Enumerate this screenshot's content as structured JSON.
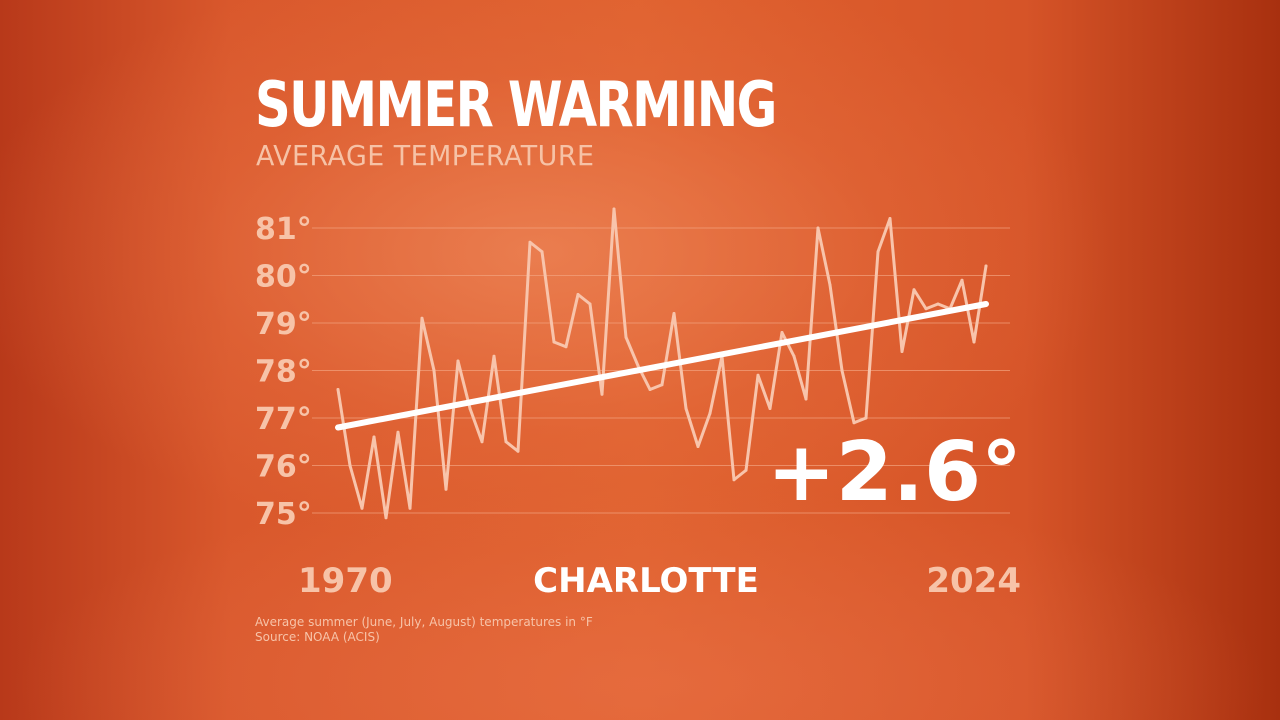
{
  "title": "SUMMER WARMING",
  "subtitle": "AVERAGE TEMPERATURE",
  "location": "CHARLOTTE",
  "change_label": "+2.6°",
  "footnote": {
    "line1": "Average summer (June, July, August) temperatures in °F",
    "line2": "Source: NOAA (ACIS)"
  },
  "colors": {
    "series_line": "#f8c4ab",
    "trend_line": "#ffffff",
    "grid": "#f2a37f",
    "tick_text": "#f7c3a8"
  },
  "chart_data": {
    "type": "line",
    "title": "SUMMER WARMING",
    "subtitle": "AVERAGE TEMPERATURE",
    "xlabel": "",
    "ylabel": "",
    "x_tick_labels": [
      "1970",
      "2024"
    ],
    "y_tick_labels": [
      "75°",
      "76°",
      "77°",
      "78°",
      "79°",
      "80°",
      "81°"
    ],
    "ylim": [
      75,
      81
    ],
    "xlim": [
      1970,
      2024
    ],
    "grid": true,
    "x": [
      1970,
      1971,
      1972,
      1973,
      1974,
      1975,
      1976,
      1977,
      1978,
      1979,
      1980,
      1981,
      1982,
      1983,
      1984,
      1985,
      1986,
      1987,
      1988,
      1989,
      1990,
      1991,
      1992,
      1993,
      1994,
      1995,
      1996,
      1997,
      1998,
      1999,
      2000,
      2001,
      2002,
      2003,
      2004,
      2005,
      2006,
      2007,
      2008,
      2009,
      2010,
      2011,
      2012,
      2013,
      2014,
      2015,
      2016,
      2017,
      2018,
      2019,
      2020,
      2021,
      2022,
      2023,
      2024
    ],
    "series": [
      {
        "values": [
          77.6,
          76.0,
          75.1,
          76.6,
          74.9,
          76.7,
          75.1,
          79.1,
          78.0,
          75.5,
          78.2,
          77.2,
          76.5,
          78.3,
          76.5,
          76.3,
          80.7,
          80.5,
          78.6,
          78.5,
          79.6,
          79.4,
          77.5,
          81.4,
          78.7,
          78.1,
          77.6,
          77.7,
          79.2,
          77.2,
          76.4,
          77.1,
          78.3,
          75.7,
          75.9,
          77.9,
          77.2,
          78.8,
          78.3,
          77.4,
          81.0,
          79.8,
          78.0,
          76.9,
          77.0,
          80.5,
          81.2,
          78.4,
          79.7,
          79.3,
          79.4,
          79.3,
          79.9,
          78.6,
          80.2
        ]
      }
    ],
    "trend": {
      "x": [
        1970,
        2024
      ],
      "values": [
        76.8,
        79.4
      ]
    }
  }
}
